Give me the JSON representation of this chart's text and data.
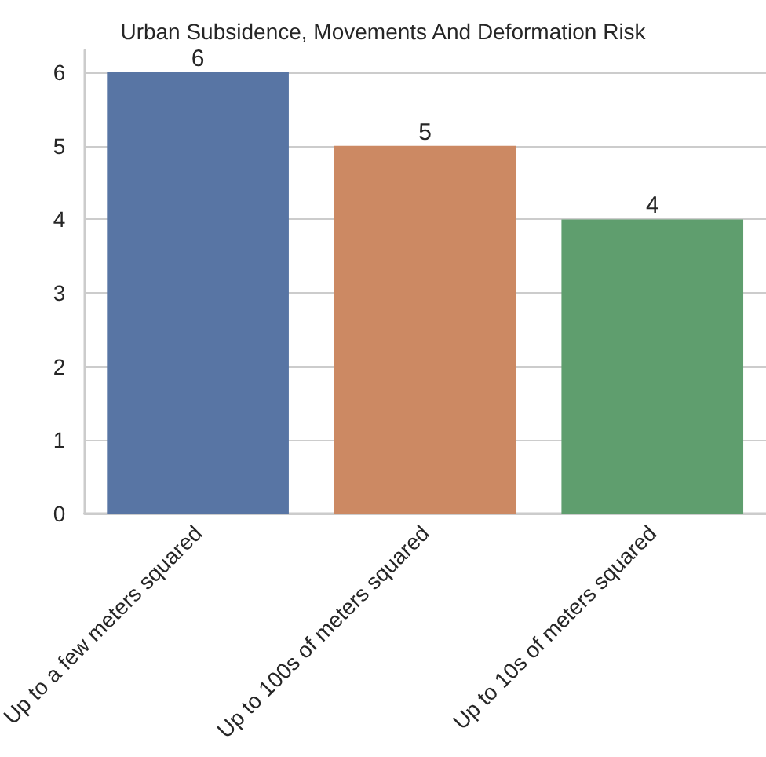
{
  "chart_data": {
    "type": "bar",
    "title": "Urban Subsidence, Movements And Deformation Risk",
    "categories": [
      "Up to a few meters squared",
      "Up to 100s of meters squared",
      "Up to 10s of meters squared"
    ],
    "values": [
      6,
      5,
      4
    ],
    "colors": [
      "#5875a4",
      "#cc8963",
      "#5f9e6e"
    ],
    "ylim": [
      0,
      6.3
    ],
    "yticks": [
      0,
      1,
      2,
      3,
      4,
      5,
      6
    ],
    "grid": "y",
    "data_labels": true
  }
}
